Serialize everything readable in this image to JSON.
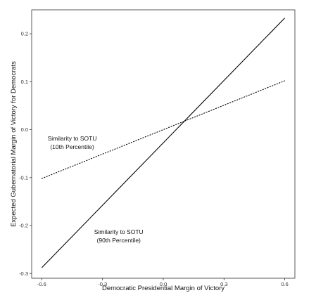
{
  "chart_data": {
    "type": "line",
    "title": "",
    "xlabel": "Democratic Presidential Margin of Victory",
    "ylabel": "Expected Gubernatorial Margin of Victory for Democrats",
    "xlim": [
      -0.65,
      0.65
    ],
    "ylim": [
      -0.31,
      0.25
    ],
    "x_ticks": [
      -0.6,
      -0.3,
      0.0,
      0.3,
      0.6
    ],
    "x_tick_labels": [
      "-0.6",
      "-0.3",
      "0.0",
      "0.3",
      "0.6"
    ],
    "y_ticks": [
      -0.3,
      -0.2,
      -0.1,
      0.0,
      0.1,
      0.2
    ],
    "y_tick_labels": [
      "-0.3",
      "-0.2",
      "-0.1",
      "0.0",
      "0.1",
      "0.2"
    ],
    "grid": false,
    "legend": "none",
    "series": [
      {
        "line_style": "dotted",
        "color": "#000000",
        "x": [
          -0.6,
          0.6
        ],
        "y": [
          -0.102,
          0.102
        ]
      },
      {
        "line_style": "solid",
        "color": "#000000",
        "x": [
          -0.6,
          0.6
        ],
        "y": [
          -0.288,
          0.233
        ]
      }
    ],
    "annotations": [
      {
        "lines": [
          "Similarity to SOTU",
          "(10th Percentile)"
        ],
        "x": -0.45,
        "y": -0.023
      },
      {
        "lines": [
          "Similarity to SOTU",
          "(90th Percentile)"
        ],
        "x": -0.22,
        "y": -0.218
      }
    ]
  }
}
